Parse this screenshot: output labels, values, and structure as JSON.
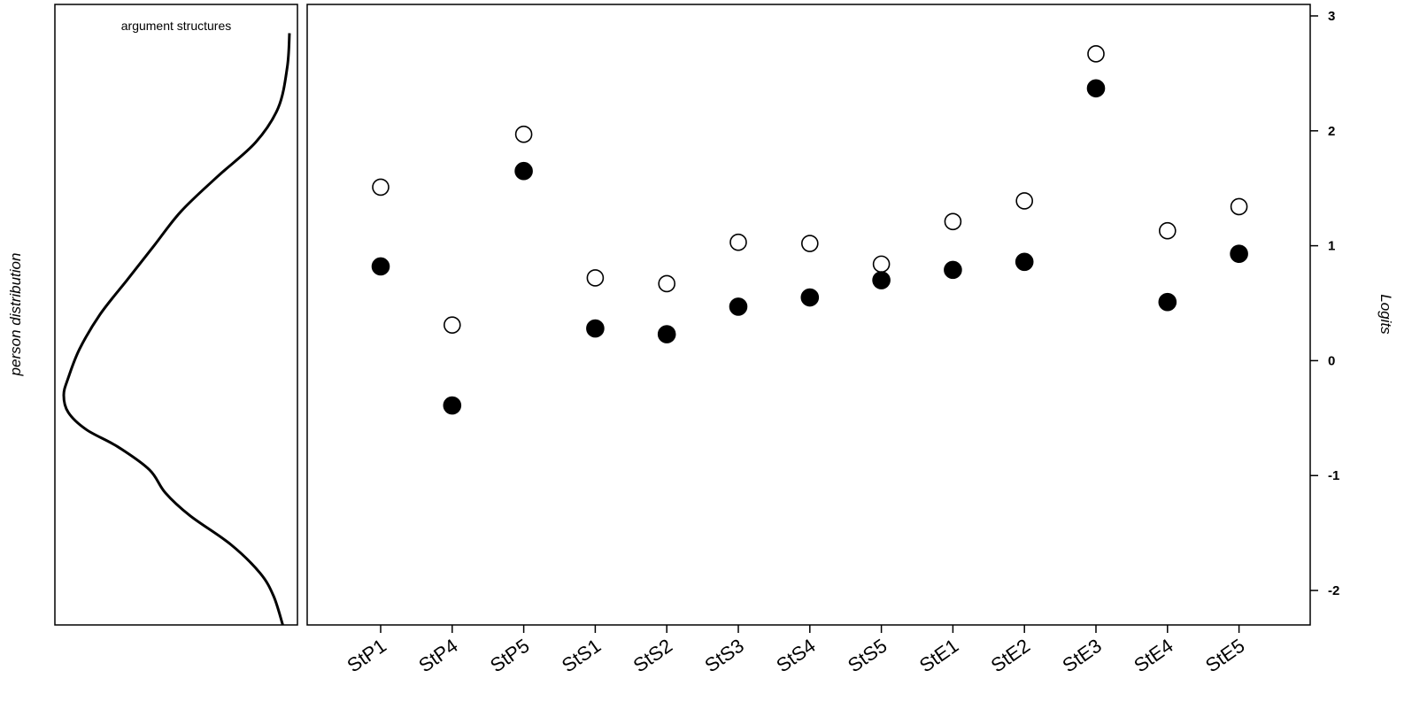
{
  "chart_data": [
    {
      "type": "line",
      "panel": "person distribution",
      "title": "argument structures",
      "ylabel": "person distribution",
      "description_points": [
        {
          "logit": 2.85,
          "density": 1.0
        },
        {
          "logit": 2.55,
          "density": 0.99
        },
        {
          "logit": 2.2,
          "density": 0.95
        },
        {
          "logit": 1.9,
          "density": 0.85
        },
        {
          "logit": 1.6,
          "density": 0.68
        },
        {
          "logit": 1.3,
          "density": 0.52
        },
        {
          "logit": 1.0,
          "density": 0.4
        },
        {
          "logit": 0.7,
          "density": 0.28
        },
        {
          "logit": 0.4,
          "density": 0.16
        },
        {
          "logit": 0.1,
          "density": 0.07
        },
        {
          "logit": -0.15,
          "density": 0.02
        },
        {
          "logit": -0.3,
          "density": 0.0
        },
        {
          "logit": -0.45,
          "density": 0.02
        },
        {
          "logit": -0.6,
          "density": 0.1
        },
        {
          "logit": -0.75,
          "density": 0.24
        },
        {
          "logit": -0.95,
          "density": 0.38
        },
        {
          "logit": -1.15,
          "density": 0.45
        },
        {
          "logit": -1.35,
          "density": 0.56
        },
        {
          "logit": -1.6,
          "density": 0.74
        },
        {
          "logit": -1.85,
          "density": 0.87
        },
        {
          "logit": -2.05,
          "density": 0.93
        },
        {
          "logit": -2.3,
          "density": 0.97
        }
      ]
    },
    {
      "type": "scatter",
      "ylabel": "Logits",
      "ylim": [
        -2.3,
        3.1
      ],
      "yticks": [
        "3",
        "2",
        "1",
        "0",
        "-1",
        "-2"
      ],
      "ytick_values": [
        3,
        2,
        1,
        0,
        -1,
        -2
      ],
      "categories": [
        "StP1",
        "StP4",
        "StP5",
        "StS1",
        "StS2",
        "StS3",
        "StS4",
        "StS5",
        "StE1",
        "StE2",
        "StE3",
        "StE4",
        "StE5"
      ],
      "series": [
        {
          "marker": "open-circle",
          "values": [
            1.51,
            0.31,
            1.97,
            0.72,
            0.67,
            1.03,
            1.02,
            0.84,
            1.21,
            1.39,
            2.67,
            1.13,
            1.34
          ]
        },
        {
          "marker": "filled-circle",
          "values": [
            0.82,
            -0.39,
            1.65,
            0.28,
            0.23,
            0.47,
            0.55,
            0.7,
            0.79,
            0.86,
            2.37,
            0.51,
            0.93
          ]
        }
      ],
      "colors": {
        "open_fill": "#ffffff",
        "filled_fill": "#000000",
        "stroke": "#000000"
      }
    }
  ]
}
